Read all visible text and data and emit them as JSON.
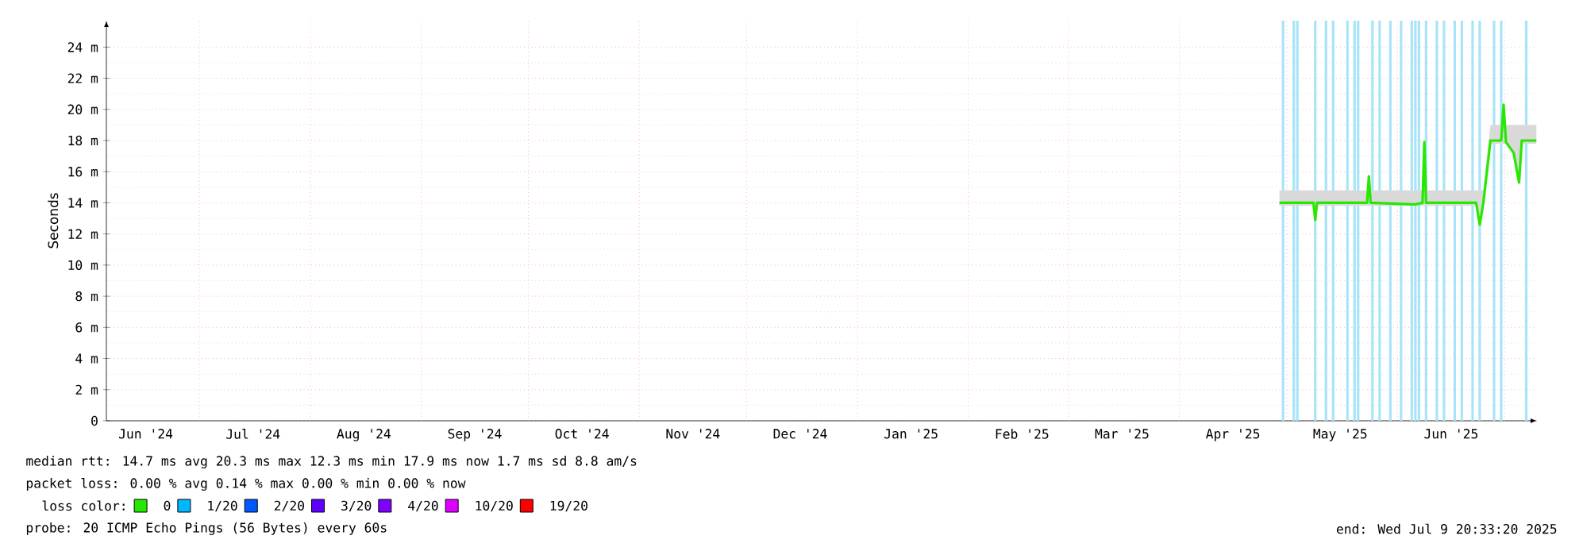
{
  "chart_data": {
    "type": "line",
    "ylabel": "Seconds",
    "legend_title": "loss color:",
    "legend": "bottom",
    "grid": true,
    "xlim": [
      "2024-06-05",
      "2025-07-10"
    ],
    "xticks": [
      {
        "value": "2024-06-16",
        "label": "Jun '24"
      },
      {
        "value": "2024-07-16",
        "label": "Jul '24"
      },
      {
        "value": "2024-08-16",
        "label": "Aug '24"
      },
      {
        "value": "2024-09-16",
        "label": "Sep '24"
      },
      {
        "value": "2024-10-16",
        "label": "Oct '24"
      },
      {
        "value": "2024-11-16",
        "label": "Nov '24"
      },
      {
        "value": "2024-12-16",
        "label": "Dec '24"
      },
      {
        "value": "2025-01-16",
        "label": "Jan '25"
      },
      {
        "value": "2025-02-16",
        "label": "Feb '25"
      },
      {
        "value": "2025-03-16",
        "label": "Mar '25"
      },
      {
        "value": "2025-04-16",
        "label": "Apr '25"
      },
      {
        "value": "2025-05-16",
        "label": "May '25"
      },
      {
        "value": "2025-06-16",
        "label": "Jun '25"
      },
      {
        "value": "2024-07-01",
        "label": null
      },
      {
        "value": "2024-08-01",
        "label": null
      },
      {
        "value": "2024-09-01",
        "label": null
      },
      {
        "value": "2024-10-01",
        "label": null
      },
      {
        "value": "2024-11-01",
        "label": null
      },
      {
        "value": "2024-12-01",
        "label": null
      },
      {
        "value": "2025-01-01",
        "label": null
      },
      {
        "value": "2025-02-01",
        "label": null
      },
      {
        "value": "2025-03-01",
        "label": null
      },
      {
        "value": "2025-04-01",
        "label": null
      },
      {
        "value": "2025-05-01",
        "label": null
      },
      {
        "value": "2025-06-01",
        "label": null
      },
      {
        "value": "2025-07-01",
        "label": null
      }
    ],
    "ylim": [
      0,
      25.7
    ],
    "yticks": [
      0,
      {
        "value": 2,
        "label": "2 m"
      },
      {
        "value": 4,
        "label": "4 m"
      },
      {
        "value": 6,
        "label": "6 m"
      },
      {
        "value": 8,
        "label": "8 m"
      },
      {
        "value": 10,
        "label": "10 m"
      },
      {
        "value": 12,
        "label": "12 m"
      },
      {
        "value": 14,
        "label": "14 m"
      },
      {
        "value": 16,
        "label": "16 m"
      },
      {
        "value": 18,
        "label": "18 m"
      },
      {
        "value": 20,
        "label": "20 m"
      },
      {
        "value": 22,
        "label": "22 m"
      },
      {
        "value": 24,
        "label": "24 m"
      }
    ],
    "ref_lines": [
      {
        "axis": "x",
        "value": "2025-04-30",
        "color": "#a8e4f8"
      },
      {
        "axis": "x",
        "value": "2025-05-03",
        "color": "#a8e4f8"
      },
      {
        "axis": "x",
        "value": "2025-05-04",
        "color": "#a8e4f8"
      },
      {
        "axis": "x",
        "value": "2025-05-09",
        "color": "#a8e4f8"
      },
      {
        "axis": "x",
        "value": "2025-05-12",
        "color": "#a8e4f8"
      },
      {
        "axis": "x",
        "value": "2025-05-14",
        "color": "#a8e4f8"
      },
      {
        "axis": "x",
        "value": "2025-05-18",
        "color": "#a8e4f8"
      },
      {
        "axis": "x",
        "value": "2025-05-20",
        "color": "#a8e4f8"
      },
      {
        "axis": "x",
        "value": "2025-05-21",
        "color": "#a8e4f8"
      },
      {
        "axis": "x",
        "value": "2025-05-25",
        "color": "#a8e4f8"
      },
      {
        "axis": "x",
        "value": "2025-05-27",
        "color": "#a8e4f8"
      },
      {
        "axis": "x",
        "value": "2025-05-30",
        "color": "#a8e4f8"
      },
      {
        "axis": "x",
        "value": "2025-06-02",
        "color": "#a8e4f8"
      },
      {
        "axis": "x",
        "value": "2025-06-05",
        "color": "#a8e4f8"
      },
      {
        "axis": "x",
        "value": "2025-06-06",
        "color": "#a8e4f8"
      },
      {
        "axis": "x",
        "value": "2025-06-07",
        "color": "#a8e4f8"
      },
      {
        "axis": "x",
        "value": "2025-06-09",
        "color": "#a8e4f8"
      },
      {
        "axis": "x",
        "value": "2025-06-12",
        "color": "#a8e4f8"
      },
      {
        "axis": "x",
        "value": "2025-06-14",
        "color": "#a8e4f8"
      },
      {
        "axis": "x",
        "value": "2025-06-17",
        "color": "#a8e4f8"
      },
      {
        "axis": "x",
        "value": "2025-06-19",
        "color": "#a8e4f8"
      },
      {
        "axis": "x",
        "value": "2025-06-22",
        "color": "#a8e4f8"
      },
      {
        "axis": "x",
        "value": "2025-06-24",
        "color": "#a8e4f8"
      },
      {
        "axis": "x",
        "value": "2025-06-28",
        "color": "#a8e4f8"
      },
      {
        "axis": "x",
        "value": "2025-06-30",
        "color": "#a8e4f8"
      },
      {
        "axis": "x",
        "value": "2025-07-07",
        "color": "#a8e4f8"
      }
    ],
    "series": [
      {
        "name": "0",
        "color": "#26e800",
        "x": [
          "2025-04-29T00:00",
          "2025-05-08T12:00",
          "2025-05-09T00:00",
          "2025-05-09T12:00",
          "2025-05-23T12:00",
          "2025-05-24T00:00",
          "2025-05-24T12:00",
          "2025-06-06T00:00",
          "2025-06-08T00:00",
          "2025-06-08T12:00",
          "2025-06-09T00:00",
          "2025-06-23T00:00",
          "2025-06-24T00:00",
          "2025-06-25T00:00",
          "2025-06-27T00:00",
          "2025-06-30T00:00",
          "2025-06-30T16:00",
          "2025-07-01T08:00",
          "2025-07-03T12:00",
          "2025-07-05T00:00",
          "2025-07-05T18:00",
          "2025-07-09T20:00"
        ],
        "values": [
          14.0,
          14.0,
          12.9,
          14.0,
          14.0,
          15.7,
          14.0,
          13.9,
          14.0,
          17.9,
          14.0,
          14.0,
          12.6,
          14.0,
          18.0,
          18.0,
          20.3,
          17.9,
          17.2,
          15.3,
          18.0,
          18.0
        ],
        "lower": [
          13.8,
          13.8,
          12.9,
          13.8,
          13.8,
          13.8,
          13.8,
          13.8,
          13.8,
          13.8,
          13.8,
          13.8,
          12.6,
          13.8,
          17.8,
          17.8,
          17.8,
          17.8,
          17.2,
          15.3,
          17.8,
          17.8
        ],
        "upper": [
          14.8,
          14.8,
          14.8,
          14.8,
          14.8,
          15.7,
          14.8,
          14.8,
          14.8,
          17.9,
          14.8,
          14.8,
          14.8,
          14.8,
          19.0,
          19.0,
          20.3,
          19.0,
          19.0,
          19.0,
          19.0,
          19.0
        ]
      },
      {
        "name": "1/20",
        "color": "#00b8ff",
        "values": [
          null
        ]
      },
      {
        "name": "2/20",
        "color": "#0059ff",
        "values": [
          null
        ]
      },
      {
        "name": "3/20",
        "color": "#5e00ff",
        "values": [
          null
        ]
      },
      {
        "name": "4/20",
        "color": "#7e00ff",
        "values": [
          null
        ]
      },
      {
        "name": "10/20",
        "color": "#dd00ff",
        "values": [
          null
        ]
      },
      {
        "name": "19/20",
        "color": "#ff0000",
        "values": [
          null
        ]
      }
    ],
    "annotations": [
      "median rtt:  14.7 ms avg  20.3 ms max  12.3 ms min  17.9 ms now  1.7 ms sd  8.8   am/s",
      "packet loss: 0.00 % avg  0.14 % max  0.00 % min  0.00 % now",
      "probe:       20 ICMP Echo Pings (56 Bytes) every 60s",
      "end: Wed Jul  9 20:33:20 2025"
    ]
  }
}
